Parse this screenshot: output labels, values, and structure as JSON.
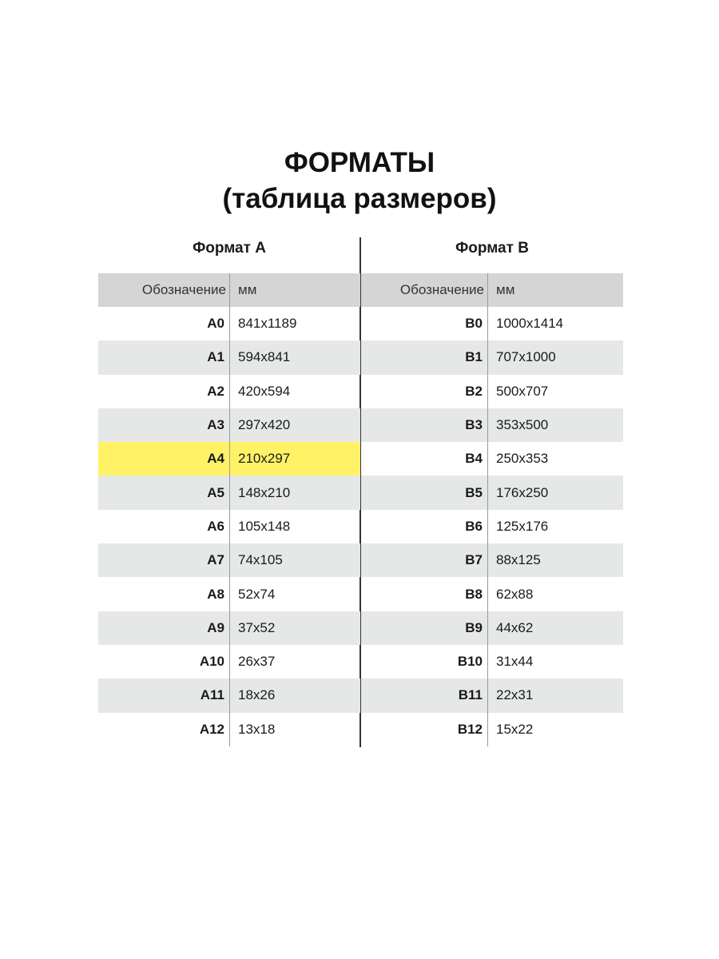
{
  "title": {
    "line1": "ФОРМАТЫ",
    "line2": "(таблица размеров)"
  },
  "columns": {
    "designation": "Обозначение",
    "mm": "мм"
  },
  "highlight_color": "#fff266",
  "format_a": {
    "heading": "Формат A",
    "highlighted": "A4",
    "rows": [
      {
        "name": "A0",
        "size": "841x1189"
      },
      {
        "name": "A1",
        "size": "594x841"
      },
      {
        "name": "A2",
        "size": "420x594"
      },
      {
        "name": "A3",
        "size": "297x420"
      },
      {
        "name": "A4",
        "size": "210x297"
      },
      {
        "name": "A5",
        "size": "148x210"
      },
      {
        "name": "A6",
        "size": "105x148"
      },
      {
        "name": "A7",
        "size": "74x105"
      },
      {
        "name": "A8",
        "size": "52x74"
      },
      {
        "name": "A9",
        "size": "37x52"
      },
      {
        "name": "A10",
        "size": "26x37"
      },
      {
        "name": "A11",
        "size": "18x26"
      },
      {
        "name": "A12",
        "size": "13x18"
      }
    ]
  },
  "format_b": {
    "heading": "Формат B",
    "rows": [
      {
        "name": "B0",
        "size": "1000x1414"
      },
      {
        "name": "B1",
        "size": "707x1000"
      },
      {
        "name": "B2",
        "size": "500x707"
      },
      {
        "name": "B3",
        "size": "353x500"
      },
      {
        "name": "B4",
        "size": "250x353"
      },
      {
        "name": "B5",
        "size": "176x250"
      },
      {
        "name": "B6",
        "size": "125x176"
      },
      {
        "name": "B7",
        "size": "88x125"
      },
      {
        "name": "B8",
        "size": "62x88"
      },
      {
        "name": "B9",
        "size": "44x62"
      },
      {
        "name": "B10",
        "size": "31x44"
      },
      {
        "name": "B11",
        "size": "22x31"
      },
      {
        "name": "B12",
        "size": "15x22"
      }
    ]
  }
}
